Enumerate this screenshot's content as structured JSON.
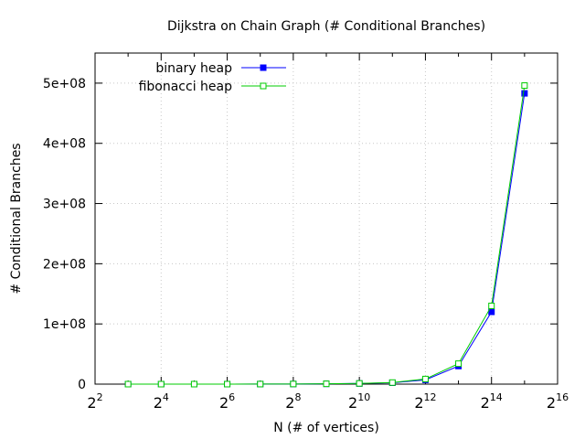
{
  "chart_data": {
    "type": "line",
    "title": "Dijkstra on Chain Graph (# Conditional Branches)",
    "xlabel": "N (# of vertices)",
    "ylabel": "# Conditional Branches",
    "x_scale": "log2",
    "x": [
      8,
      16,
      32,
      64,
      128,
      256,
      512,
      1024,
      2048,
      4096,
      8192,
      16384,
      32768
    ],
    "xlim": [
      4,
      65536
    ],
    "ylim": [
      0,
      550000000
    ],
    "x_ticks": [
      {
        "value": 4,
        "base": "2",
        "exp": "2"
      },
      {
        "value": 16,
        "base": "2",
        "exp": "4"
      },
      {
        "value": 64,
        "base": "2",
        "exp": "6"
      },
      {
        "value": 256,
        "base": "2",
        "exp": "8"
      },
      {
        "value": 1024,
        "base": "2",
        "exp": "10"
      },
      {
        "value": 4096,
        "base": "2",
        "exp": "12"
      },
      {
        "value": 16384,
        "base": "2",
        "exp": "14"
      },
      {
        "value": 65536,
        "base": "2",
        "exp": "16"
      }
    ],
    "y_ticks": [
      {
        "value": 0,
        "label": "0"
      },
      {
        "value": 100000000,
        "label": "1e+08"
      },
      {
        "value": 200000000,
        "label": "2e+08"
      },
      {
        "value": 300000000,
        "label": "3e+08"
      },
      {
        "value": 400000000,
        "label": "4e+08"
      },
      {
        "value": 500000000,
        "label": "5e+08"
      }
    ],
    "grid": true,
    "legend_position": "top-left",
    "series": [
      {
        "name": "binary heap",
        "color": "#0000ff",
        "marker": "filled-square",
        "values": [
          4000,
          9000,
          20000,
          45000,
          100000,
          220000,
          480000,
          1050000,
          2300000,
          7000000,
          30000000,
          120000000,
          483000000
        ]
      },
      {
        "name": "fibonacci heap",
        "color": "#00cc00",
        "marker": "open-square",
        "values": [
          5000,
          11000,
          25000,
          55000,
          120000,
          260000,
          560000,
          1200000,
          2600000,
          8500000,
          34000000,
          130000000,
          496000000
        ]
      }
    ]
  }
}
